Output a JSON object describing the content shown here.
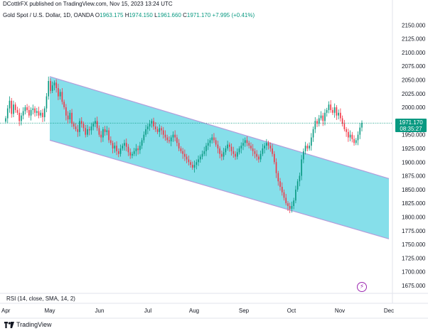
{
  "header": {
    "published": "DCottlrFX published on TradingView.com, Nov 15, 2023 13:24 UTC"
  },
  "legend": {
    "symbol": "Gold Spot / U.S. Dollar, 1D, OANDA",
    "o_key": "O",
    "o_val": "1963.175",
    "h_key": "H",
    "h_val": "1974.150",
    "l_key": "L",
    "l_val": "1961.660",
    "c_key": "C",
    "c_val": "1971.170",
    "change": "+7.995 (+0.41%)"
  },
  "price_tag": {
    "price": "1971.170",
    "countdown": "08:35:27"
  },
  "indicator": {
    "label": "RSI (14, close, SMA, 14, 2)",
    "button_icon": "lightning-icon"
  },
  "footer": {
    "brand": "TradingView",
    "logo_icon": "tradingview-logo-icon"
  },
  "colors": {
    "up": "#089981",
    "down": "#f23645",
    "channel_fill": "#7fdde9",
    "channel_edge": "#b39ddb",
    "price_line": "#089981"
  },
  "chart_data": {
    "type": "candlestick",
    "title": "Gold Spot / U.S. Dollar, 1D, OANDA",
    "y_ticks": [
      1675,
      1700,
      1725,
      1750,
      1775,
      1800,
      1825,
      1850,
      1875,
      1900,
      1925,
      1950,
      1975,
      2000,
      2025,
      2050,
      2075,
      2100,
      2125,
      2150
    ],
    "y_tick_labels": [
      "1675.000",
      "1700.000",
      "1725.000",
      "1750.000",
      "1775.000",
      "1800.000",
      "1825.000",
      "1850.000",
      "1875.000",
      "1900.000",
      "1925.000",
      "1950.000",
      "1975.000",
      "2000.000",
      "2025.000",
      "2050.000",
      "2075.000",
      "2100.000",
      "2125.000",
      "2150.000"
    ],
    "ylim": [
      1662,
      2162
    ],
    "x_ticks": [
      "Apr",
      "May",
      "Jun",
      "Jul",
      "Aug",
      "Sep",
      "Oct",
      "Nov",
      "Dec"
    ],
    "current_price": 1971.17,
    "channel": {
      "upper": [
        [
          1,
          2056
        ],
        [
          12,
          1870
        ]
      ],
      "lower": [
        [
          1,
          1940
        ],
        [
          12,
          1760
        ]
      ]
    },
    "closes": [
      1980,
      1998,
      2012,
      1988,
      2005,
      1995,
      1990,
      1975,
      1985,
      1993,
      2000,
      1995,
      1985,
      1995,
      1998,
      1990,
      1993,
      1985,
      1990,
      1982,
      1998,
      2020,
      2048,
      2030,
      2040,
      2045,
      2035,
      2020,
      2028,
      2010,
      2000,
      1985,
      1978,
      1990,
      1970,
      1965,
      1960,
      1955,
      1975,
      1970,
      1962,
      1950,
      1960,
      1958,
      1965,
      1970,
      1975,
      1962,
      1950,
      1945,
      1960,
      1955,
      1958,
      1940,
      1935,
      1925,
      1930,
      1920,
      1915,
      1925,
      1930,
      1935,
      1928,
      1918,
      1912,
      1915,
      1920,
      1925,
      1922,
      1930,
      1940,
      1950,
      1960,
      1965,
      1970,
      1975,
      1965,
      1960,
      1955,
      1962,
      1958,
      1950,
      1945,
      1940,
      1938,
      1945,
      1950,
      1945,
      1935,
      1925,
      1920,
      1915,
      1910,
      1905,
      1900,
      1895,
      1890,
      1895,
      1900,
      1905,
      1910,
      1915,
      1920,
      1930,
      1935,
      1940,
      1945,
      1940,
      1932,
      1925,
      1915,
      1910,
      1918,
      1925,
      1932,
      1928,
      1920,
      1915,
      1910,
      1918,
      1925,
      1930,
      1935,
      1940,
      1935,
      1930,
      1925,
      1920,
      1915,
      1910,
      1905,
      1915,
      1925,
      1930,
      1935,
      1930,
      1925,
      1915,
      1900,
      1880,
      1865,
      1855,
      1845,
      1835,
      1825,
      1820,
      1815,
      1820,
      1830,
      1850,
      1865,
      1875,
      1905,
      1920,
      1930,
      1925,
      1930,
      1945,
      1960,
      1975,
      1970,
      1980,
      1985,
      1975,
      1990,
      1995,
      2005,
      1995,
      1990,
      2000,
      1985,
      1990,
      1980,
      1970,
      1960,
      1955,
      1945,
      1950,
      1942,
      1935,
      1940,
      1950,
      1963,
      1971.17
    ]
  }
}
